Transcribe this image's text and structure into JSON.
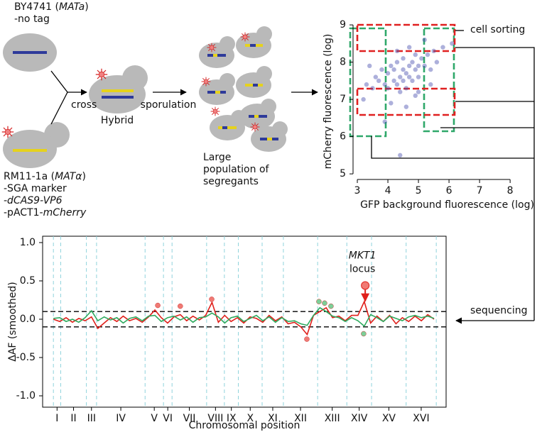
{
  "diagram": {
    "parent1": {
      "lines": [
        [
          {
            "text": "BY4741 ("
          },
          {
            "text": "MATa",
            "italic": true
          },
          {
            "text": ")"
          }
        ],
        [
          {
            "text": "-no tag"
          }
        ]
      ]
    },
    "parent2": {
      "lines": [
        [
          {
            "text": "RM11-1a ("
          },
          {
            "text": "MATα",
            "italic": true
          },
          {
            "text": ")"
          }
        ],
        [
          {
            "text": "-SGA marker"
          }
        ],
        [
          {
            "text": "-dCAS9-VP6",
            "italic": true
          }
        ],
        [
          {
            "text": "-pACT1-"
          },
          {
            "text": "mCherry",
            "italic": true
          }
        ]
      ]
    },
    "cross": "cross",
    "hybrid": "Hybrid",
    "sporulation": "sporulation",
    "segregants": [
      "Large",
      "population of",
      "segregants"
    ],
    "cell_sorting": "cell sorting",
    "sequencing": "sequencing"
  },
  "chart_data": [
    {
      "type": "scatter",
      "xlabel": "GFP background fluorescence (log)",
      "ylabel": "mCherry fluorescence (log)",
      "color": "#4a50b0",
      "x": [
        3.3,
        3.5,
        3.6,
        3.7,
        3.8,
        3.9,
        4.0,
        4.0,
        4.1,
        4.2,
        4.2,
        4.3,
        4.3,
        4.4,
        4.4,
        4.5,
        4.5,
        4.5,
        4.6,
        4.6,
        4.7,
        4.7,
        4.8,
        4.8,
        4.9,
        4.9,
        5.0,
        5.0,
        5.1,
        5.2,
        5.3,
        5.4,
        5.5,
        5.6,
        5.8,
        6.1,
        3.2,
        3.4,
        4.1,
        4.6,
        5.0,
        5.4,
        4.4,
        3.9,
        4.7,
        4.3,
        4.9,
        5.2
      ],
      "values": [
        7.4,
        7.3,
        7.6,
        7.5,
        7.8,
        7.4,
        7.7,
        7.3,
        7.9,
        7.5,
        7.8,
        7.4,
        8.0,
        7.6,
        7.2,
        7.8,
        7.5,
        8.1,
        7.7,
        7.3,
        7.9,
        7.6,
        8.0,
        7.5,
        7.8,
        8.2,
        7.9,
        7.6,
        8.1,
        7.9,
        8.2,
        7.8,
        8.3,
        8.0,
        8.4,
        8.5,
        7.0,
        7.9,
        6.9,
        6.8,
        7.2,
        7.4,
        5.5,
        6.4,
        8.4,
        8.3,
        7.1,
        8.6
      ],
      "xlim": [
        2.86,
        8.09
      ],
      "ylim": [
        4.85,
        9.04
      ],
      "xticks": [
        3,
        4,
        5,
        6,
        7,
        8
      ],
      "yticks": [
        5,
        6,
        7,
        8,
        9
      ]
    },
    {
      "type": "line",
      "xlabel": "Chromosomal position",
      "ylabel": "ΔAF (smoothed)",
      "x": [
        0,
        0.2,
        0.4,
        0.6,
        0.8,
        1.0,
        1.2,
        1.4,
        1.6,
        1.8,
        2.0,
        2.2,
        2.4,
        2.6,
        2.8,
        3.0,
        3.2,
        3.4,
        3.6,
        3.8,
        4.0,
        4.2,
        4.4,
        4.6,
        4.8,
        5.0,
        5.2,
        5.4,
        5.6,
        5.8,
        6.0,
        6.2,
        6.4,
        6.6,
        6.8,
        7.0,
        7.2,
        7.4,
        7.6,
        7.8,
        8.0,
        8.2,
        8.4,
        8.6,
        8.8,
        9.0,
        9.2,
        9.4,
        9.6,
        9.8,
        10.0,
        10.2,
        10.4,
        10.6,
        10.8,
        11.0,
        11.2,
        11.4,
        11.6,
        11.8,
        12.0
      ],
      "series": [
        {
          "color": "#e0201b",
          "values": [
            0.0,
            -0.03,
            0.02,
            -0.04,
            0.01,
            -0.02,
            0.03,
            -0.12,
            -0.05,
            0.02,
            -0.03,
            0.04,
            -0.02,
            0.01,
            -0.04,
            0.03,
            0.12,
            0.02,
            -0.05,
            0.03,
            0.06,
            -0.02,
            0.04,
            -0.01,
            0.05,
            0.22,
            -0.04,
            0.05,
            -0.03,
            0.02,
            -0.05,
            0.03,
            0.01,
            -0.04,
            0.05,
            -0.02,
            0.03,
            -0.06,
            -0.04,
            -0.1,
            -0.2,
            0.05,
            0.1,
            0.15,
            0.02,
            0.04,
            -0.02,
            0.05,
            0.05,
            0.23,
            -0.05,
            0.04,
            -0.03,
            0.05,
            -0.06,
            0.02,
            -0.03,
            0.04,
            -0.02,
            0.06,
            0.0
          ]
        },
        {
          "color": "#2eaa5e",
          "values": [
            0.01,
            0.02,
            -0.03,
            0.0,
            -0.04,
            0.02,
            0.11,
            -0.02,
            0.03,
            -0.01,
            0.02,
            -0.05,
            0.01,
            0.03,
            -0.02,
            0.04,
            0.05,
            -0.03,
            0.02,
            0.04,
            -0.01,
            0.03,
            -0.04,
            0.02,
            0.03,
            0.08,
            0.03,
            -0.05,
            0.02,
            0.04,
            -0.03,
            0.01,
            0.05,
            -0.02,
            0.03,
            -0.04,
            0.02,
            -0.03,
            -0.02,
            -0.06,
            -0.08,
            0.05,
            0.15,
            0.1,
            0.04,
            0.02,
            -0.03,
            0.02,
            -0.02,
            -0.09,
            0.06,
            0.02,
            -0.03,
            0.04,
            0.01,
            -0.02,
            0.03,
            0.05,
            0.02,
            0.04,
            0.01
          ]
        }
      ],
      "points": [
        {
          "color": "#f07a74",
          "x": [
            3.29,
            4.0,
            4.99,
            7.99
          ],
          "values": [
            0.18,
            0.17,
            0.26,
            -0.26
          ]
        },
        {
          "color": "#7ccf98",
          "x": [
            8.37,
            8.55,
            8.75,
            9.78
          ],
          "values": [
            0.23,
            0.21,
            0.17,
            -0.19
          ]
        }
      ],
      "annotation": {
        "lines": [
          "MKT1",
          "locus"
        ],
        "x": 9.83,
        "y": 0.44,
        "color": "#f07a74"
      },
      "categories": [
        "I",
        "II",
        "III",
        "IV",
        "V",
        "VI",
        "VII",
        "VIII",
        "IX",
        "X",
        "XI",
        "XII",
        "XIII",
        "XIV",
        "XV",
        "XVI"
      ],
      "boundaries": [
        0,
        0.23,
        1.04,
        1.36,
        2.89,
        3.47,
        3.74,
        4.83,
        5.39,
        5.83,
        6.58,
        7.25,
        8.33,
        9.25,
        10.03,
        11.12,
        12.07
      ],
      "thresholds": [
        0.1,
        -0.1
      ],
      "xlim": [
        -0.34,
        12.38
      ],
      "ylim": [
        -1.148,
        1.083
      ],
      "yticks": [
        {
          "value": -1,
          "label": "-1.0"
        },
        {
          "value": -0.5,
          "label": "-0.5"
        },
        {
          "value": 0,
          "label": "0.0"
        },
        {
          "value": 0.5,
          "label": "0.5"
        },
        {
          "value": 1,
          "label": "1.0"
        }
      ]
    }
  ]
}
